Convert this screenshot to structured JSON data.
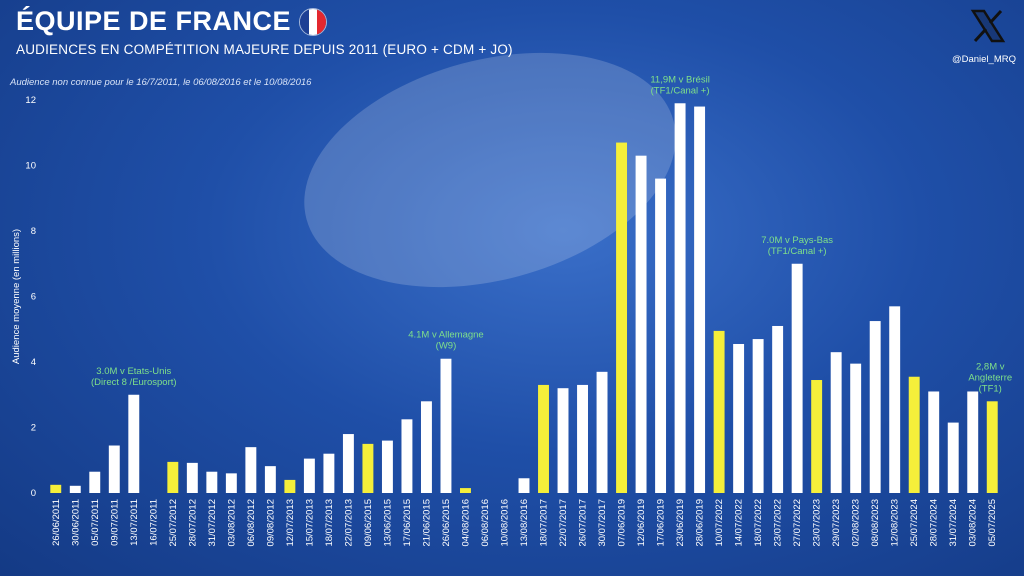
{
  "header": {
    "title": "ÉQUIPE DE FRANCE",
    "subtitle": "AUDIENCES EN COMPÉTITION MAJEURE DEPUIS 2011 (EURO + CDM + JO)",
    "note": "Audience non connue pour le 16/7/2011, le 06/08/2016 et le 10/08/2016",
    "handle": "@Daniel_MRQ",
    "logo_icon": "x-logo-icon",
    "flag_icon": "france-flag-icon"
  },
  "colors": {
    "highlight": "#f5ef3a",
    "normal": "#ffffff",
    "annotation": "#7fe08a",
    "flag_blue": "#1d3f94",
    "flag_white": "#ffffff",
    "flag_red": "#e3282f"
  },
  "chart_data": {
    "type": "bar",
    "title": "ÉQUIPE DE FRANCE",
    "ylabel": "Audience moyenne (en millions)",
    "xlabel": "",
    "ylim": [
      0,
      12
    ],
    "yticks": [
      0,
      2,
      4,
      6,
      8,
      10,
      12
    ],
    "grid": false,
    "categories": [
      "26/06/2011",
      "30/06/2011",
      "05/07/2011",
      "09/07/2011",
      "13/07/2011",
      "16/07/2011",
      "25/07/2012",
      "28/07/2012",
      "31/07/2012",
      "03/08/2012",
      "06/08/2012",
      "09/08/2012",
      "12/07/2013",
      "15/07/2013",
      "18/07/2013",
      "22/07/2013",
      "09/06/2015",
      "13/06/2015",
      "17/06/2015",
      "21/06/2015",
      "26/06/2015",
      "04/08/2016",
      "06/08/2016",
      "10/08/2016",
      "13/08/2016",
      "18/07/2017",
      "22/07/2017",
      "26/07/2017",
      "30/07/2017",
      "07/06/2019",
      "12/06/2019",
      "17/06/2019",
      "23/06/2019",
      "28/06/2019",
      "10/07/2022",
      "14/07/2022",
      "18/07/2022",
      "23/07/2022",
      "27/07/2022",
      "23/07/2023",
      "29/07/2023",
      "02/08/2023",
      "08/08/2023",
      "12/08/2023",
      "25/07/2024",
      "28/07/2024",
      "31/07/2024",
      "03/08/2024",
      "05/07/2025"
    ],
    "values": [
      0.25,
      0.22,
      0.65,
      1.45,
      3.0,
      null,
      0.95,
      0.92,
      0.65,
      0.6,
      1.4,
      0.82,
      0.4,
      1.05,
      1.2,
      1.8,
      1.5,
      1.6,
      2.25,
      2.8,
      4.1,
      0.15,
      null,
      null,
      0.45,
      3.3,
      3.2,
      3.3,
      3.7,
      10.7,
      10.3,
      9.6,
      11.9,
      11.8,
      4.95,
      4.55,
      4.7,
      5.1,
      7.0,
      3.45,
      4.3,
      3.95,
      5.25,
      5.7,
      3.55,
      3.1,
      2.15,
      3.1,
      2.8
    ],
    "highlight": [
      true,
      false,
      false,
      false,
      false,
      false,
      true,
      false,
      false,
      false,
      false,
      false,
      true,
      false,
      false,
      false,
      true,
      false,
      false,
      false,
      false,
      true,
      false,
      false,
      false,
      true,
      false,
      false,
      false,
      true,
      false,
      false,
      false,
      false,
      true,
      false,
      false,
      false,
      false,
      true,
      false,
      false,
      false,
      false,
      true,
      false,
      false,
      false,
      true
    ],
    "annotations": [
      {
        "index": 4,
        "lines": [
          "3.0M v Etats-Unis",
          "(Direct 8 /Eurosport)"
        ]
      },
      {
        "index": 20,
        "lines": [
          "4.1M v Allemagne",
          "(W9)"
        ]
      },
      {
        "index": 32,
        "lines": [
          "11,9M v Brésil",
          "(TF1/Canal +)"
        ]
      },
      {
        "index": 38,
        "lines": [
          "7.0M v Pays-Bas",
          "(TF1/Canal +)"
        ]
      },
      {
        "index": 48,
        "lines": [
          "2,8M v",
          "Angleterre",
          "(TF1)"
        ]
      }
    ]
  }
}
